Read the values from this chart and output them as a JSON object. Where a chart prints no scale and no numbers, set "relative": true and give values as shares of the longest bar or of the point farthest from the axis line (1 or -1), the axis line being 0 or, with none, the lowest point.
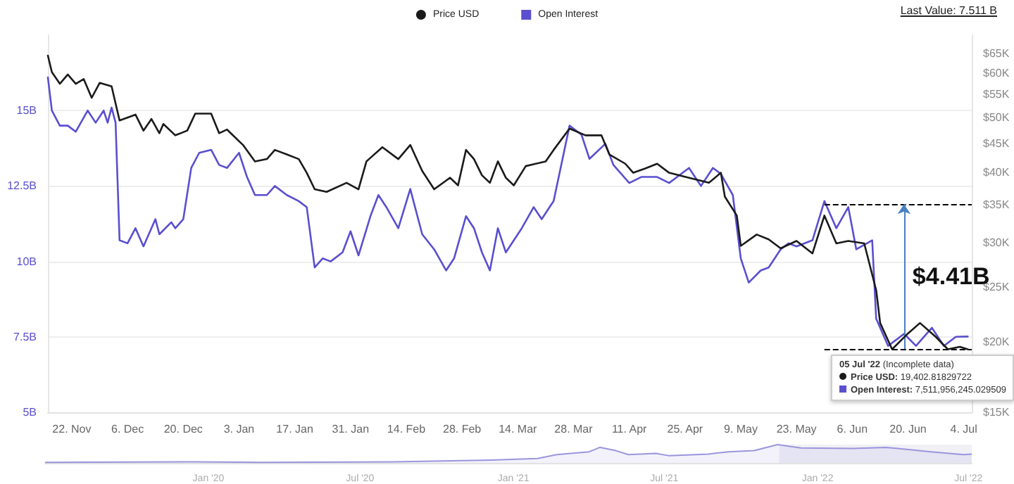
{
  "chart_data": [
    {
      "type": "line",
      "legend": "top",
      "grid": "y",
      "log": "y2",
      "line_style": "solid",
      "marker": "none",
      "xlim": [
        "2021-11-16",
        "2022-07-06"
      ],
      "xticks": [
        {
          "value": "2021-11-22",
          "label": "22. Nov"
        },
        {
          "value": "2021-12-06",
          "label": "6. Dec"
        },
        {
          "value": "2021-12-20",
          "label": "20. Dec"
        },
        {
          "value": "2022-01-03",
          "label": "3. Jan"
        },
        {
          "value": "2022-01-17",
          "label": "17. Jan"
        },
        {
          "value": "2022-01-31",
          "label": "31. Jan"
        },
        {
          "value": "2022-02-14",
          "label": "14. Feb"
        },
        {
          "value": "2022-02-28",
          "label": "28. Feb"
        },
        {
          "value": "2022-03-14",
          "label": "14. Mar"
        },
        {
          "value": "2022-03-28",
          "label": "28. Mar"
        },
        {
          "value": "2022-04-11",
          "label": "11. Apr"
        },
        {
          "value": "2022-04-25",
          "label": "25. Apr"
        },
        {
          "value": "2022-05-09",
          "label": "9. May"
        },
        {
          "value": "2022-05-23",
          "label": "23. May"
        },
        {
          "value": "2022-06-06",
          "label": "6. Jun"
        },
        {
          "value": "2022-06-20",
          "label": "20. Jun"
        },
        {
          "value": "2022-07-04",
          "label": "4. Jul"
        }
      ],
      "ylim": [
        5,
        17.5
      ],
      "yticks": [
        {
          "value": 5,
          "label": "5B"
        },
        {
          "value": 7.5,
          "label": "7.5B"
        },
        {
          "value": 10,
          "label": "10B"
        },
        {
          "value": 12.5,
          "label": "12.5B"
        },
        {
          "value": 15,
          "label": "15B"
        }
      ],
      "y2lim": [
        15000,
        70000
      ],
      "y2ticks": [
        {
          "value": 15000,
          "label": "$15K"
        },
        {
          "value": 20000,
          "label": "$20K"
        },
        {
          "value": 25000,
          "label": "$25K"
        },
        {
          "value": 30000,
          "label": "$30K"
        },
        {
          "value": 35000,
          "label": "$35K"
        },
        {
          "value": 40000,
          "label": "$40K"
        },
        {
          "value": 45000,
          "label": "$45K"
        },
        {
          "value": 50000,
          "label": "$50K"
        },
        {
          "value": 55000,
          "label": "$55K"
        },
        {
          "value": 60000,
          "label": "$60K"
        },
        {
          "value": 65000,
          "label": "$65K"
        }
      ],
      "series": [
        {
          "name": "Price USD",
          "color": "#1a1a1a",
          "axis": "y2",
          "x": [
            "2021-11-16",
            "2021-11-17",
            "2021-11-19",
            "2021-11-21",
            "2021-11-23",
            "2021-11-25",
            "2021-11-27",
            "2021-11-29",
            "2021-12-02",
            "2021-12-04",
            "2021-12-08",
            "2021-12-10",
            "2021-12-12",
            "2021-12-14",
            "2021-12-15",
            "2021-12-18",
            "2021-12-21",
            "2021-12-23",
            "2021-12-27",
            "2021-12-29",
            "2021-12-31",
            "2022-01-04",
            "2022-01-07",
            "2022-01-10",
            "2022-01-12",
            "2022-01-15",
            "2022-01-18",
            "2022-01-20",
            "2022-01-22",
            "2022-01-25",
            "2022-01-30",
            "2022-02-02",
            "2022-02-04",
            "2022-02-08",
            "2022-02-12",
            "2022-02-15",
            "2022-02-18",
            "2022-02-21",
            "2022-02-25",
            "2022-02-27",
            "2022-03-01",
            "2022-03-03",
            "2022-03-05",
            "2022-03-07",
            "2022-03-09",
            "2022-03-11",
            "2022-03-13",
            "2022-03-16",
            "2022-03-21",
            "2022-03-23",
            "2022-03-27",
            "2022-03-31",
            "2022-04-04",
            "2022-04-06",
            "2022-04-10",
            "2022-04-12",
            "2022-04-15",
            "2022-04-18",
            "2022-04-21",
            "2022-04-26",
            "2022-05-01",
            "2022-05-04",
            "2022-05-05",
            "2022-05-08",
            "2022-05-09",
            "2022-05-13",
            "2022-05-16",
            "2022-05-19",
            "2022-05-23",
            "2022-05-27",
            "2022-05-30",
            "2022-06-02",
            "2022-06-05",
            "2022-06-09",
            "2022-06-12",
            "2022-06-13",
            "2022-06-16",
            "2022-06-20",
            "2022-06-23",
            "2022-06-27",
            "2022-06-30",
            "2022-07-03",
            "2022-07-05"
          ],
          "values": [
            64400,
            60200,
            57400,
            59600,
            57400,
            58500,
            54200,
            57600,
            56800,
            49400,
            50600,
            47400,
            49700,
            46900,
            48700,
            46500,
            47400,
            50800,
            50800,
            46900,
            47600,
            44700,
            41800,
            42200,
            43800,
            43000,
            42200,
            39900,
            37300,
            36900,
            38300,
            37300,
            41800,
            44300,
            42200,
            44700,
            40200,
            37300,
            39100,
            37900,
            43800,
            42200,
            39500,
            38300,
            41800,
            39100,
            37900,
            41000,
            41800,
            43800,
            47800,
            46500,
            46500,
            43000,
            41400,
            39900,
            40600,
            41400,
            39900,
            39100,
            38300,
            39900,
            36200,
            33500,
            29600,
            31000,
            30400,
            29300,
            30200,
            28700,
            33500,
            29900,
            30200,
            29900,
            24700,
            21600,
            19400,
            20700,
            21600,
            20400,
            19400,
            19600,
            19402.82
          ]
        },
        {
          "name": "Open Interest",
          "color": "#5a4fcf",
          "x": [
            "2021-11-16",
            "2021-11-17",
            "2021-11-19",
            "2021-11-21",
            "2021-11-23",
            "2021-11-26",
            "2021-11-28",
            "2021-11-30",
            "2021-12-01",
            "2021-12-02",
            "2021-12-03",
            "2021-12-04",
            "2021-12-06",
            "2021-12-08",
            "2021-12-10",
            "2021-12-13",
            "2021-12-14",
            "2021-12-17",
            "2021-12-18",
            "2021-12-20",
            "2021-12-22",
            "2021-12-24",
            "2021-12-27",
            "2021-12-29",
            "2021-12-31",
            "2022-01-03",
            "2022-01-05",
            "2022-01-07",
            "2022-01-10",
            "2022-01-12",
            "2022-01-15",
            "2022-01-18",
            "2022-01-20",
            "2022-01-22",
            "2022-01-24",
            "2022-01-26",
            "2022-01-29",
            "2022-01-31",
            "2022-02-02",
            "2022-02-05",
            "2022-02-07",
            "2022-02-09",
            "2022-02-12",
            "2022-02-15",
            "2022-02-18",
            "2022-02-21",
            "2022-02-24",
            "2022-02-26",
            "2022-03-01",
            "2022-03-03",
            "2022-03-05",
            "2022-03-07",
            "2022-03-09",
            "2022-03-11",
            "2022-03-15",
            "2022-03-18",
            "2022-03-20",
            "2022-03-23",
            "2022-03-27",
            "2022-03-30",
            "2022-04-01",
            "2022-04-05",
            "2022-04-07",
            "2022-04-11",
            "2022-04-14",
            "2022-04-18",
            "2022-04-21",
            "2022-04-26",
            "2022-04-29",
            "2022-05-02",
            "2022-05-04",
            "2022-05-07",
            "2022-05-09",
            "2022-05-11",
            "2022-05-14",
            "2022-05-16",
            "2022-05-19",
            "2022-05-21",
            "2022-05-23",
            "2022-05-27",
            "2022-05-30",
            "2022-06-02",
            "2022-06-05",
            "2022-06-07",
            "2022-06-11",
            "2022-06-12",
            "2022-06-15",
            "2022-06-19",
            "2022-06-22",
            "2022-06-26",
            "2022-06-29",
            "2022-07-02",
            "2022-07-05"
          ],
          "values": [
            16.1,
            15.0,
            14.5,
            14.5,
            14.3,
            15.0,
            14.6,
            15.0,
            14.6,
            15.1,
            14.6,
            10.7,
            10.6,
            11.1,
            10.5,
            11.4,
            10.9,
            11.3,
            11.1,
            11.4,
            13.1,
            13.6,
            13.7,
            13.2,
            13.1,
            13.6,
            12.8,
            12.2,
            12.2,
            12.5,
            12.2,
            12.0,
            11.8,
            9.8,
            10.1,
            10.0,
            10.3,
            11.0,
            10.2,
            11.5,
            12.2,
            11.8,
            11.1,
            12.4,
            10.9,
            10.4,
            9.7,
            10.1,
            11.5,
            11.1,
            10.3,
            9.7,
            11.1,
            10.3,
            11.1,
            11.8,
            11.4,
            12.0,
            14.5,
            14.2,
            13.4,
            13.9,
            13.2,
            12.6,
            12.8,
            12.8,
            12.6,
            13.1,
            12.5,
            13.1,
            12.9,
            12.2,
            10.1,
            9.3,
            9.7,
            9.8,
            10.4,
            10.6,
            10.5,
            10.7,
            12.0,
            11.1,
            11.8,
            10.4,
            10.7,
            8.1,
            7.2,
            7.6,
            7.2,
            7.8,
            7.2,
            7.5,
            7.51
          ]
        }
      ],
      "ref_lines": [
        {
          "axis": "y",
          "value": 11.9,
          "color": "#000000",
          "line_style": "dashed"
        },
        {
          "axis": "y",
          "value": 7.1,
          "color": "#000000",
          "line_style": "dashed"
        }
      ],
      "annotations": [
        "Last Value: 7.511 B",
        {
          "text": "$4.41B",
          "x": "2022-06-19",
          "y": 11.9
        },
        "05 Jul '22 (Incomplete data)",
        "Price USD: 19,402.81829722",
        "Open Interest: 7,511,956,245.029509"
      ]
    },
    {
      "type": "area",
      "relative": true,
      "tick_labels": "x",
      "color": "#9b95dd",
      "xlim": [
        "2019-06-19",
        "2022-07-05"
      ],
      "xticks": [
        {
          "value": "2020-01-01",
          "label": "Jan '20"
        },
        {
          "value": "2020-07-01",
          "label": "Jul '20"
        },
        {
          "value": "2021-01-01",
          "label": "Jan '21"
        },
        {
          "value": "2021-07-01",
          "label": "Jul '21"
        },
        {
          "value": "2022-01-01",
          "label": "Jan '22"
        },
        {
          "value": "2022-07-01",
          "label": "Jul '22"
        }
      ],
      "x": [
        "2019-06-19",
        "2019-12-16",
        "2020-03-05",
        "2020-08-10",
        "2020-12-06",
        "2021-01-30",
        "2021-02-22",
        "2021-04-02",
        "2021-04-15",
        "2021-05-04",
        "2021-05-19",
        "2021-06-21",
        "2021-07-07",
        "2021-08-23",
        "2021-09-16",
        "2021-10-17",
        "2021-11-14",
        "2021-12-12",
        "2022-02-12",
        "2022-03-24",
        "2022-05-17",
        "2022-06-25",
        "2022-07-05"
      ],
      "values": [
        0.03,
        0.06,
        0.03,
        0.06,
        0.15,
        0.24,
        0.45,
        0.61,
        0.85,
        0.67,
        0.45,
        0.52,
        0.39,
        0.48,
        0.61,
        0.67,
        1,
        0.82,
        0.79,
        0.85,
        0.61,
        0.45,
        0.48
      ],
      "bands": [
        {
          "axis": "x",
          "from": "2021-11-16",
          "to": "2022-07-05",
          "color": "#e6e6ee"
        }
      ]
    }
  ]
}
